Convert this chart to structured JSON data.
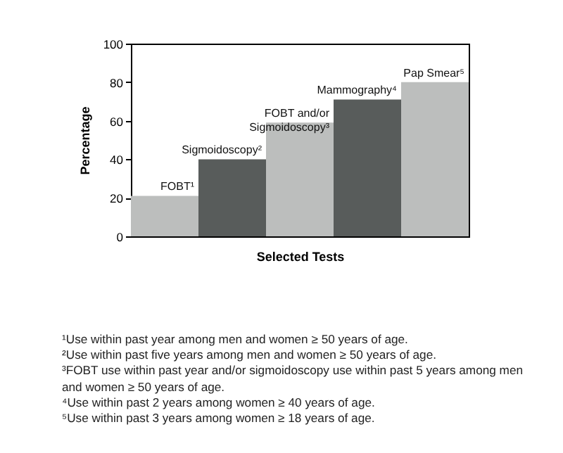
{
  "chart_data": {
    "type": "bar",
    "xlabel": "Selected Tests",
    "ylabel": "Percentage",
    "categories": [
      "FOBT¹",
      "Sigmoidoscopy²",
      "FOBT and/or\nSigmoidoscopy³",
      "Mammography⁴",
      "Pap Smear⁵"
    ],
    "values": [
      21,
      40,
      59,
      71,
      80
    ],
    "colors": [
      "#bcbebd",
      "#585c5b",
      "#bcbebd",
      "#585c5b",
      "#bcbebd"
    ],
    "ylim": [
      0,
      100
    ],
    "yticks": [
      0,
      20,
      40,
      60,
      80,
      100
    ],
    "grid": false,
    "tick_labels": "y",
    "annotations": [
      "¹Use within past year among men and women ≥ 50 years of age.",
      "²Use within past five years among men and women ≥ 50 years of age.",
      "³FOBT use within past year and/or sigmoidoscopy use within past 5 years among men and women ≥ 50 years of age.",
      "⁴Use within past 2 years among women ≥ 40 years of age.",
      "⁵Use within past 3 years among women ≥ 18 years of age."
    ]
  }
}
